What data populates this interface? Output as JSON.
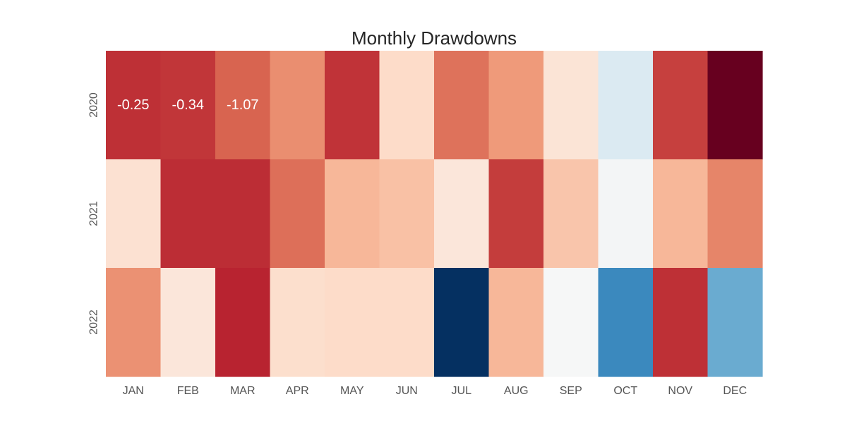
{
  "chart_data": {
    "type": "heatmap",
    "title": "Monthly Drawdowns",
    "xlabel": "",
    "ylabel": "",
    "colormap": "RdBu_r",
    "grid": false,
    "legend": "none",
    "color_scale": {
      "min": -10.0,
      "max": 1.25
    },
    "x_categories": [
      "JAN",
      "FEB",
      "MAR",
      "APR",
      "MAY",
      "JUN",
      "JUL",
      "AUG",
      "SEP",
      "OCT",
      "NOV",
      "DEC"
    ],
    "y_categories": [
      "2020",
      "2021",
      "2022"
    ],
    "values": [
      [
        -0.25,
        -0.34,
        -1.07,
        -1.75,
        -0.3,
        -3.3,
        -1.3,
        -1.95,
        -3.6,
        -5.2,
        -0.5,
        1.25
      ],
      [
        -3.5,
        -0.2,
        -0.2,
        -1.25,
        -2.5,
        -2.7,
        -3.7,
        -0.45,
        -2.8,
        -4.5,
        -2.5,
        -1.6
      ],
      [
        -1.8,
        -3.7,
        -0.05,
        -3.4,
        -3.3,
        -3.3,
        -10.0,
        -2.5,
        -4.4,
        -8.0,
        -0.25,
        -7.2
      ]
    ],
    "annotations": [
      {
        "row": 0,
        "col": 0,
        "text": "-0.25"
      },
      {
        "row": 0,
        "col": 1,
        "text": "-0.34"
      },
      {
        "row": 0,
        "col": 2,
        "text": "-1.07"
      }
    ]
  },
  "colors": {
    "text": "#262626",
    "tick_text": "#555555",
    "cmap_stops": [
      "#053061",
      "#2166ac",
      "#4393c3",
      "#92c5de",
      "#d1e5f0",
      "#f7f7f7",
      "#fddbc7",
      "#f4a582",
      "#d6604d",
      "#b2182b",
      "#67001f"
    ]
  }
}
